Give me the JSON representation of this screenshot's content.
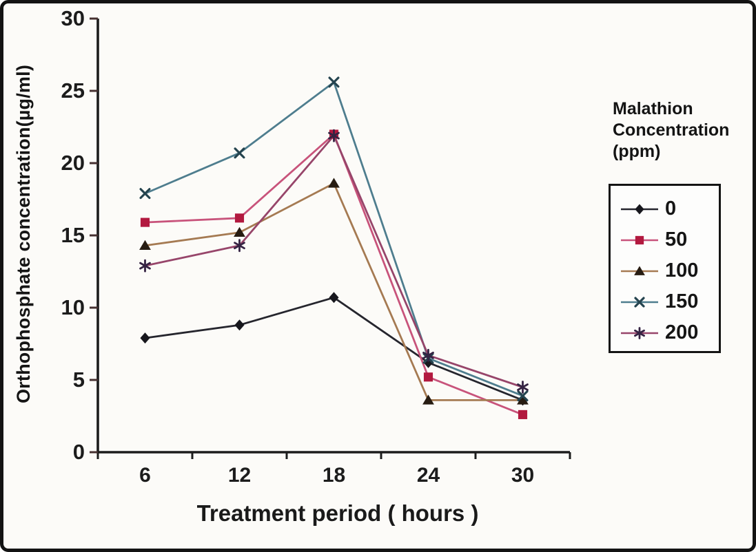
{
  "chart_data": {
    "type": "line",
    "title": "",
    "xlabel": "Treatment period ( hours )",
    "ylabel": "Orthophosphate concentration(µg/ml)",
    "x_tick_labels": [
      "6",
      "12",
      "18",
      "24",
      "30"
    ],
    "x_values": [
      6,
      12,
      18,
      24,
      30
    ],
    "yticks": [
      0,
      5,
      10,
      15,
      20,
      25,
      30
    ],
    "ylim": [
      0,
      30
    ],
    "grid": false,
    "legend_title": "Malathion\nConcentration\n(ppm)",
    "legend_position": "right",
    "series": [
      {
        "name": "0",
        "marker": "diamond",
        "line_color": "#25252d",
        "marker_color": "#17171d",
        "values": [
          7.9,
          8.8,
          10.7,
          6.2,
          3.6
        ]
      },
      {
        "name": "50",
        "marker": "square",
        "line_color": "#c8537Byz",
        "marker_color": "#b2193f",
        "values": [
          15.9,
          16.2,
          22.0,
          5.2,
          2.6
        ]
      },
      {
        "name": "100",
        "marker": "triangle",
        "line_color": "#a57a52",
        "marker_color": "#271c12",
        "values": [
          14.3,
          15.2,
          18.6,
          3.6,
          3.6
        ]
      },
      {
        "name": "150",
        "marker": "x",
        "line_color": "#4e7d8e",
        "marker_color": "#25444f",
        "values": [
          17.9,
          20.7,
          25.6,
          6.5,
          3.9
        ]
      },
      {
        "name": "200",
        "marker": "asterisk",
        "line_color": "#97456a",
        "marker_color": "#352343",
        "values": [
          12.9,
          14.3,
          21.9,
          6.7,
          4.5
        ]
      }
    ],
    "axis_color": "#1c1c1c",
    "y_tick_color": "#463030"
  }
}
